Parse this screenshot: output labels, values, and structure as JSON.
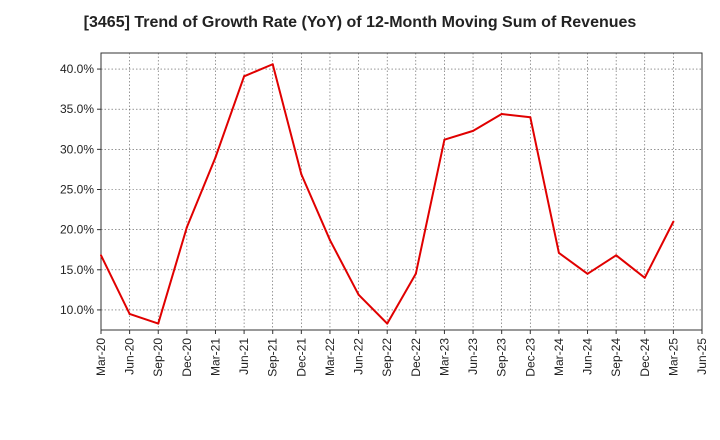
{
  "chart_data": {
    "type": "line",
    "title": "[3465]  Trend of Growth Rate (YoY) of 12-Month Moving Sum of Revenues",
    "xlabel": "",
    "ylabel": "",
    "x_ticks": [
      "Mar-20",
      "Jun-20",
      "Sep-20",
      "Dec-20",
      "Mar-21",
      "Jun-21",
      "Sep-21",
      "Dec-21",
      "Mar-22",
      "Jun-22",
      "Sep-22",
      "Dec-22",
      "Mar-23",
      "Jun-23",
      "Sep-23",
      "Dec-23",
      "Mar-24",
      "Jun-24",
      "Sep-24",
      "Dec-24",
      "Mar-25",
      "Jun-25"
    ],
    "y_ticks": [
      "10.0%",
      "15.0%",
      "20.0%",
      "25.0%",
      "30.0%",
      "35.0%",
      "40.0%"
    ],
    "y_tick_values": [
      10,
      15,
      20,
      25,
      30,
      35,
      40
    ],
    "ylim": [
      7.5,
      42
    ],
    "grid": true,
    "line_color": "#e00000",
    "series": [
      {
        "x": [
          "Mar-20",
          "Jun-20",
          "Sep-20",
          "Dec-20",
          "Mar-21",
          "Jun-21",
          "Sep-21",
          "Dec-21",
          "Mar-22",
          "Jun-22",
          "Sep-22",
          "Dec-22",
          "Mar-23",
          "Jun-23",
          "Sep-23",
          "Dec-23",
          "Mar-24",
          "Jun-24",
          "Sep-24",
          "Dec-24",
          "Mar-25"
        ],
        "values": [
          16.8,
          9.5,
          8.3,
          20.3,
          29.0,
          39.1,
          40.6,
          26.9,
          18.7,
          11.9,
          8.3,
          14.5,
          31.2,
          32.3,
          34.4,
          34.0,
          17.1,
          14.5,
          16.8,
          14.0,
          21.0
        ]
      }
    ]
  }
}
